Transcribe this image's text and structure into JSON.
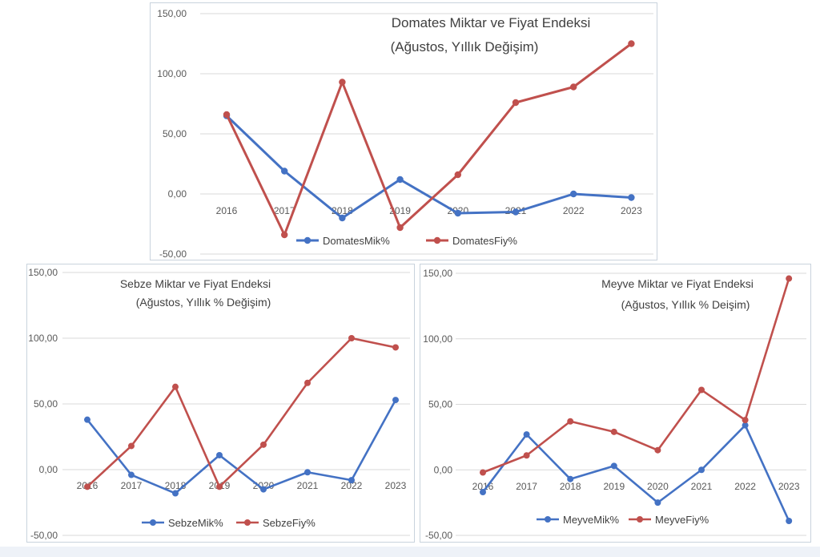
{
  "chart_data": [
    {
      "type": "line",
      "title": "Domates Miktar ve Fiyat Endeksi",
      "subtitle": "(Ağustos, Yıllık Değişim)",
      "categories": [
        "2016",
        "2017",
        "2018",
        "2019",
        "2020",
        "2021",
        "2022",
        "2023"
      ],
      "series": [
        {
          "name": "DomatesMik%",
          "color": "#4472c4",
          "values": [
            65,
            19,
            -20,
            12,
            -16,
            -15,
            0,
            -3
          ]
        },
        {
          "name": "DomatesFiy%",
          "color": "#c0504d",
          "values": [
            66,
            -34,
            93,
            -28,
            16,
            76,
            89,
            125
          ]
        }
      ],
      "ylim": [
        -50,
        150
      ],
      "y_ticks": [
        "-50,00",
        "0,00",
        "50,00",
        "100,00",
        "150,00"
      ],
      "xlabel": "",
      "ylabel": "",
      "grid": true,
      "legend": "bottom"
    },
    {
      "type": "line",
      "title": "Sebze Miktar ve Fiyat Endeksi",
      "subtitle": "(Ağustos, Yıllık % Değişim)",
      "categories": [
        "2016",
        "2017",
        "2018",
        "2019",
        "2020",
        "2021",
        "2022",
        "2023"
      ],
      "series": [
        {
          "name": "SebzeMik%",
          "color": "#4472c4",
          "values": [
            38,
            -4,
            -18,
            11,
            -15,
            -2,
            -8,
            53
          ]
        },
        {
          "name": "SebzeFiy%",
          "color": "#c0504d",
          "values": [
            -13,
            18,
            63,
            -13,
            19,
            66,
            100,
            93
          ]
        }
      ],
      "ylim": [
        -50,
        150
      ],
      "y_ticks": [
        "-50,00",
        "0,00",
        "50,00",
        "100,00",
        "150,00"
      ],
      "xlabel": "",
      "ylabel": "",
      "grid": true,
      "legend": "bottom"
    },
    {
      "type": "line",
      "title": "Meyve Miktar ve Fiyat Endeksi",
      "subtitle": "(Ağustos, Yıllık % Deişim)",
      "categories": [
        "2016",
        "2017",
        "2018",
        "2019",
        "2020",
        "2021",
        "2022",
        "2023"
      ],
      "series": [
        {
          "name": "MeyveMik%",
          "color": "#4472c4",
          "values": [
            -17,
            27,
            -7,
            3,
            -25,
            0,
            34,
            -39
          ]
        },
        {
          "name": "MeyveFiy%",
          "color": "#c0504d",
          "values": [
            -2,
            11,
            37,
            29,
            15,
            61,
            38,
            146
          ]
        }
      ],
      "ylim": [
        -50,
        150
      ],
      "y_ticks": [
        "-50,00",
        "0,00",
        "50,00",
        "100,00",
        "150,00"
      ],
      "xlabel": "",
      "ylabel": "",
      "grid": true,
      "legend": "bottom"
    }
  ]
}
